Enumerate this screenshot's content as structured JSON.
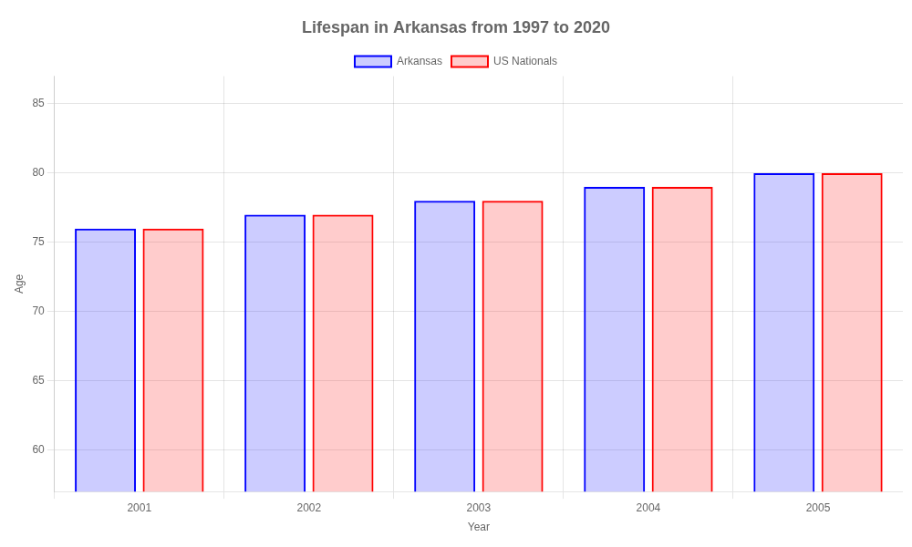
{
  "chart_data": {
    "type": "bar",
    "title": "Lifespan in Arkansas from 1997 to 2020",
    "x_label": "Year",
    "y_label": "Age",
    "categories": [
      "2001",
      "2002",
      "2003",
      "2004",
      "2005"
    ],
    "series": [
      {
        "name": "Arkansas",
        "color": "#0000ff",
        "values": [
          76.0,
          77.0,
          78.0,
          79.0,
          80.0
        ]
      },
      {
        "name": "US Nationals",
        "color": "#ff0000",
        "values": [
          76.0,
          77.0,
          78.0,
          79.0,
          80.0
        ]
      }
    ],
    "ylim": [
      57,
      87
    ],
    "yticks": [
      60,
      65,
      70,
      75,
      80,
      85
    ],
    "grid": true,
    "legend": "top"
  }
}
